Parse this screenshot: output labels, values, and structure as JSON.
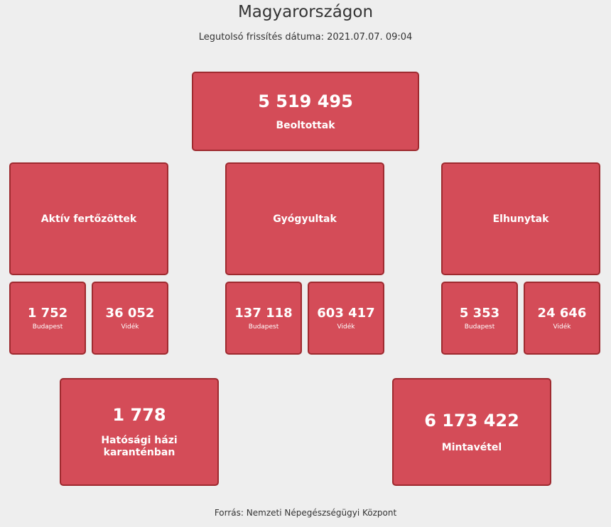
{
  "header": {
    "title": "Magyarországon",
    "updated": "Legutolsó frissítés dátuma: 2021.07.07. 09:04"
  },
  "vaccinated": {
    "value": "5 519 495",
    "label": "Beoltottak"
  },
  "groups": [
    {
      "label": "Aktív fertőzöttek",
      "budapest": {
        "value": "1 752",
        "label": "Budapest"
      },
      "videk": {
        "value": "36 052",
        "label": "Vidék"
      }
    },
    {
      "label": "Gyógyultak",
      "budapest": {
        "value": "137 118",
        "label": "Budapest"
      },
      "videk": {
        "value": "603 417",
        "label": "Vidék"
      }
    },
    {
      "label": "Elhunytak",
      "budapest": {
        "value": "5 353",
        "label": "Budapest"
      },
      "videk": {
        "value": "24 646",
        "label": "Vidék"
      }
    }
  ],
  "quarantine": {
    "value": "1 778",
    "label": "Hatósági házi karanténban"
  },
  "sampling": {
    "value": "6 173 422",
    "label": "Mintavétel"
  },
  "footer": {
    "source": "Forrás: Nemzeti Népegészségügyi Központ"
  },
  "colors": {
    "card": "#d44c58",
    "card_border": "#9e2a2f",
    "background": "#eeeeee"
  }
}
